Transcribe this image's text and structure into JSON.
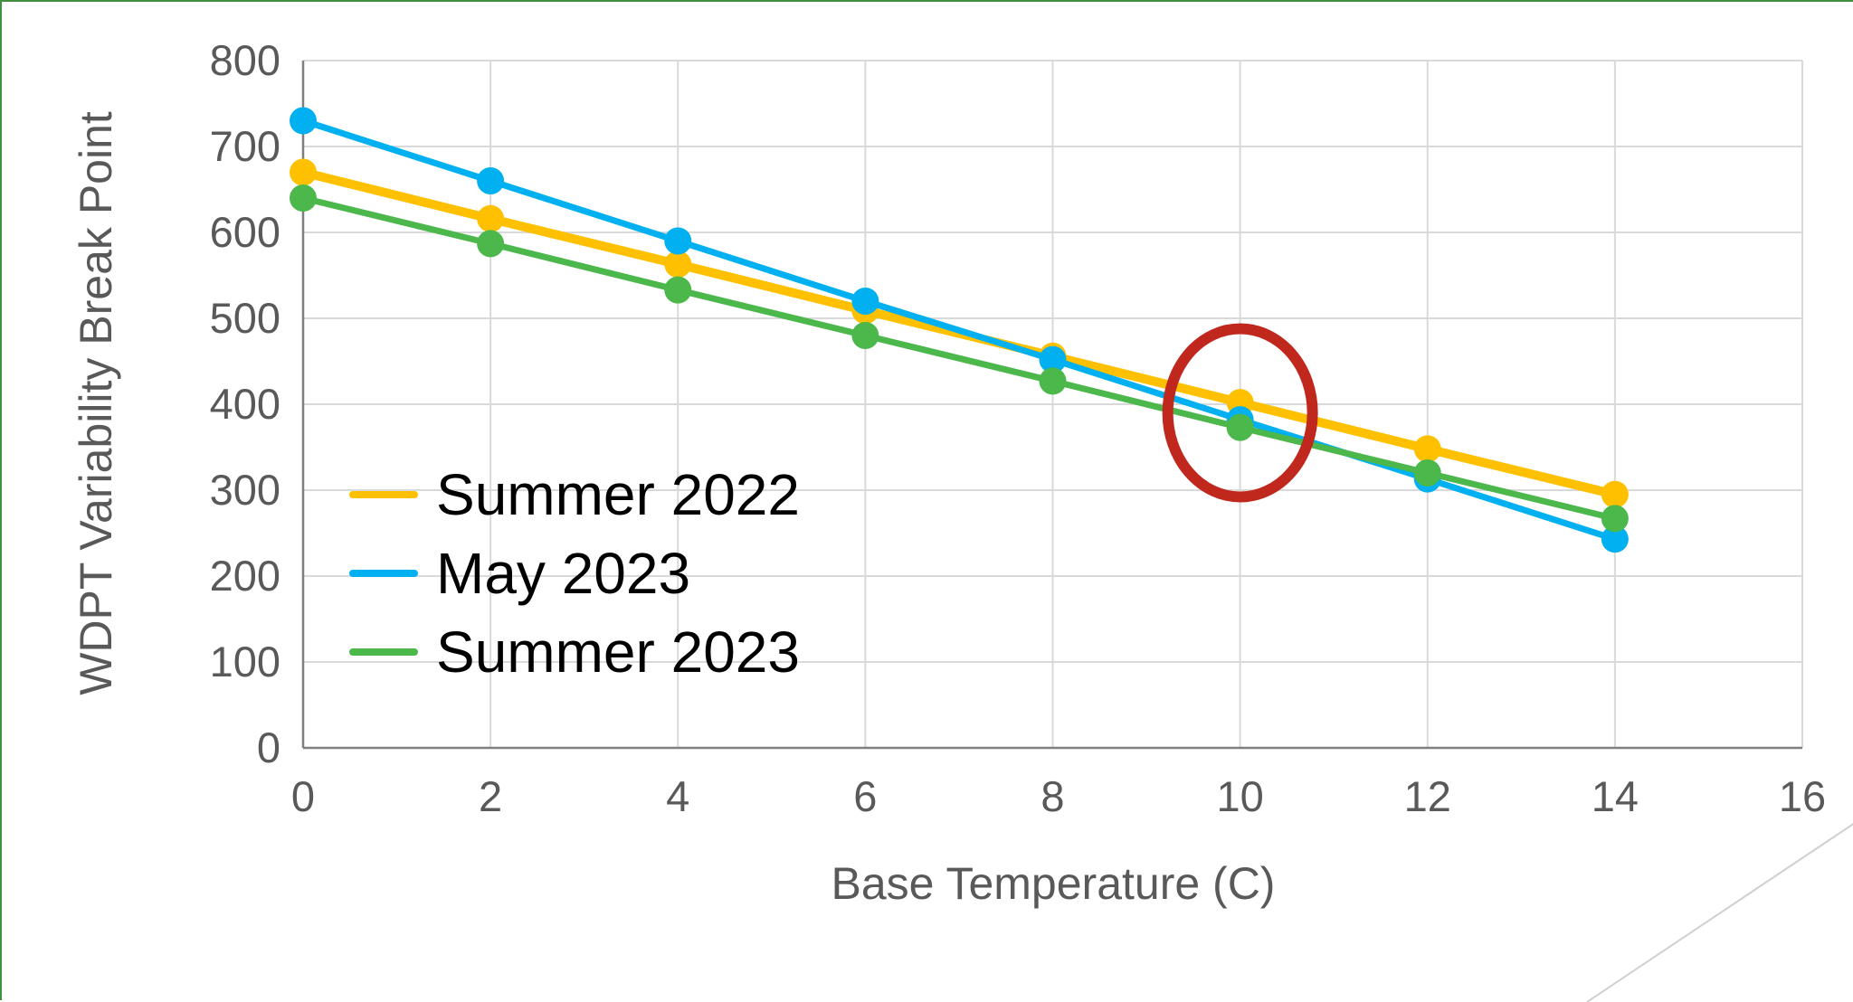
{
  "colors": {
    "grid": "#d9d9d9",
    "axis": "#7f7f7f",
    "annotation": "#c0281e"
  },
  "chart_data": {
    "type": "line",
    "title": "",
    "xlabel": "Base Temperature (C)",
    "ylabel": "WDPT Variability Break Point",
    "xlim": [
      0,
      16
    ],
    "ylim": [
      0,
      800
    ],
    "x_ticks": [
      0,
      2,
      4,
      6,
      8,
      10,
      12,
      14,
      16
    ],
    "y_ticks": [
      0,
      100,
      200,
      300,
      400,
      500,
      600,
      700,
      800
    ],
    "grid": true,
    "legend_position": "bottom-left",
    "x": [
      0,
      2,
      4,
      6,
      8,
      10,
      12,
      14
    ],
    "series": [
      {
        "name": "Summer 2022",
        "color": "#ffc000",
        "values": [
          670,
          616,
          563,
          509,
          456,
          402,
          348,
          295
        ]
      },
      {
        "name": "May 2023",
        "color": "#00b0f0",
        "values": [
          730,
          660,
          590,
          520,
          452,
          382,
          313,
          243
        ]
      },
      {
        "name": "Summer 2023",
        "color": "#4cb84c",
        "values": [
          640,
          587,
          533,
          480,
          427,
          373,
          320,
          267
        ]
      }
    ],
    "annotations": [
      {
        "type": "ellipse",
        "x": 10,
        "y": 390,
        "color": "#c0281e",
        "description": "highlighted point"
      }
    ]
  }
}
